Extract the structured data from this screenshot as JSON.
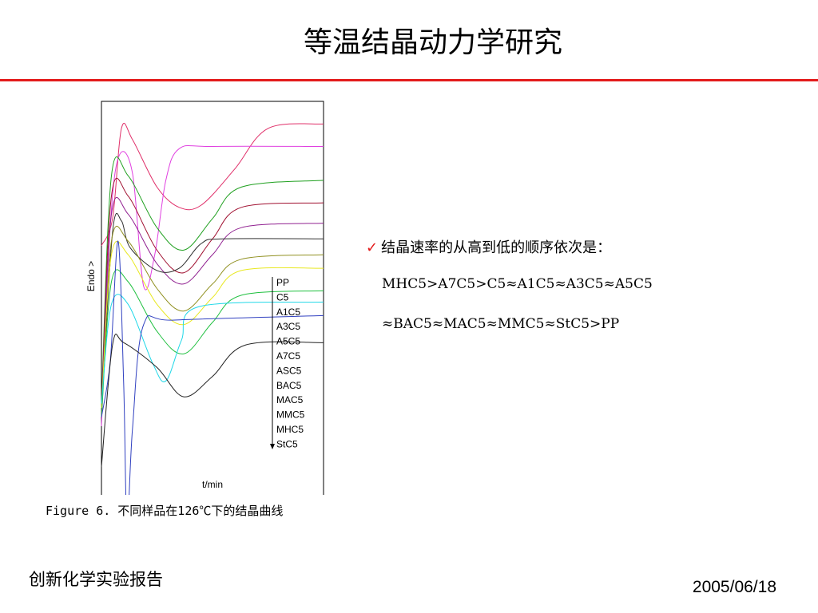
{
  "slide": {
    "title": "等温结晶动力学研究",
    "caption": "Figure 6. 不同样品在126℃下的结晶曲线",
    "conclusion": "结晶速率的从高到低的顺序依次是：",
    "order_line_1": "MHC5>A7C5>C5≈A1C5≈A3C5≈A5C5",
    "order_line_2": "≈BAC5≈MAC5≈MMC5≈StC5>PP",
    "footer_left": "创新化学实验报告",
    "footer_right": "2005/06/18",
    "check_icon": "✓",
    "accent_color": "#e31b1b"
  },
  "chart_data": {
    "type": "line",
    "xlabel": "t/min",
    "ylabel": "Endo >",
    "xlim": [
      0,
      10
    ],
    "x_ticks": [
      "0",
      "1",
      "2",
      "3",
      "4",
      "5",
      "6",
      "7",
      "8",
      "9",
      "10"
    ],
    "y_ticks_shown": false,
    "legend": [
      "PP",
      "C5",
      "A1C5",
      "A3C5",
      "A5C5",
      "A7C5",
      "ASC5",
      "BAC5",
      "MAC5",
      "MMC5",
      "MHC5",
      "StC5"
    ],
    "legend_position": "bottom-right",
    "series": [
      {
        "color": "#e0306a",
        "points": [
          [
            0,
            9.6
          ],
          [
            0.5,
            10.8
          ],
          [
            0.9,
            14.8
          ],
          [
            1.4,
            14.3
          ],
          [
            2.5,
            12.2
          ],
          [
            3.5,
            11.3
          ],
          [
            4.5,
            11.4
          ],
          [
            6,
            13.0
          ],
          [
            7.5,
            14.8
          ],
          [
            10,
            15.0
          ]
        ]
      },
      {
        "color": "#e040e0",
        "points": [
          [
            0,
            1.6
          ],
          [
            0.4,
            10.5
          ],
          [
            0.8,
            13.6
          ],
          [
            1.4,
            12.8
          ],
          [
            1.9,
            7.8
          ],
          [
            2.4,
            9.2
          ],
          [
            2.9,
            12.5
          ],
          [
            3.5,
            13.9
          ],
          [
            5,
            14.0
          ],
          [
            10,
            14.0
          ]
        ]
      },
      {
        "color": "#20a020",
        "points": [
          [
            0,
            2.6
          ],
          [
            0.45,
            12.7
          ],
          [
            1.2,
            12.7
          ],
          [
            2.5,
            10.4
          ],
          [
            3.7,
            9.4
          ],
          [
            5,
            10.8
          ],
          [
            6.3,
            12.2
          ],
          [
            10,
            12.5
          ]
        ]
      },
      {
        "color": "#a01030",
        "points": [
          [
            0,
            2.4
          ],
          [
            0.45,
            11.8
          ],
          [
            1.2,
            11.8
          ],
          [
            2.5,
            9.4
          ],
          [
            3.7,
            8.4
          ],
          [
            5,
            9.9
          ],
          [
            6.3,
            11.3
          ],
          [
            10,
            11.5
          ]
        ]
      },
      {
        "color": "#902090",
        "points": [
          [
            0,
            2.2
          ],
          [
            0.45,
            11.0
          ],
          [
            1.2,
            11.0
          ],
          [
            2.5,
            8.8
          ],
          [
            3.7,
            7.9
          ],
          [
            5,
            9.2
          ],
          [
            6.3,
            10.4
          ],
          [
            10,
            10.6
          ]
        ]
      },
      {
        "color": "#303030",
        "points": [
          [
            0,
            2.2
          ],
          [
            0.5,
            10.2
          ],
          [
            0.9,
            10.7
          ],
          [
            1.3,
            9.5
          ],
          [
            2.5,
            8.5
          ],
          [
            3.5,
            8.6
          ],
          [
            4.5,
            9.7
          ],
          [
            5.5,
            9.9
          ],
          [
            10,
            9.9
          ]
        ]
      },
      {
        "color": "#909020",
        "points": [
          [
            0,
            2.0
          ],
          [
            0.45,
            9.8
          ],
          [
            1.2,
            9.8
          ],
          [
            2.5,
            7.7
          ],
          [
            3.7,
            6.7
          ],
          [
            5,
            7.9
          ],
          [
            6.3,
            9.0
          ],
          [
            10,
            9.2
          ]
        ]
      },
      {
        "color": "#e8e820",
        "points": [
          [
            0,
            2.4
          ],
          [
            0.45,
            9.2
          ],
          [
            1.2,
            9.2
          ],
          [
            2.5,
            7.0
          ],
          [
            3.7,
            6.1
          ],
          [
            5,
            7.3
          ],
          [
            6.3,
            8.5
          ],
          [
            10,
            8.6
          ]
        ]
      },
      {
        "color": "#20c040",
        "points": [
          [
            0,
            2.0
          ],
          [
            0.45,
            8.0
          ],
          [
            1.2,
            8.0
          ],
          [
            2.5,
            5.8
          ],
          [
            3.7,
            4.8
          ],
          [
            5,
            6.2
          ],
          [
            6.3,
            7.4
          ],
          [
            10,
            7.6
          ]
        ]
      },
      {
        "color": "#20d8e8",
        "points": [
          [
            0,
            2.6
          ],
          [
            0.45,
            7.0
          ],
          [
            1.2,
            7.0
          ],
          [
            2.3,
            4.4
          ],
          [
            2.9,
            3.6
          ],
          [
            3.6,
            5.4
          ],
          [
            4.4,
            6.9
          ],
          [
            10,
            7.1
          ]
        ]
      },
      {
        "color": "#3040c0",
        "points": [
          [
            0,
            2.0
          ],
          [
            0.4,
            4.5
          ],
          [
            0.75,
            9.8
          ],
          [
            1.0,
            3.5
          ],
          [
            1.15,
            -2.8
          ],
          [
            1.4,
            1.5
          ],
          [
            1.9,
            6.1
          ],
          [
            3.3,
            6.3
          ],
          [
            10,
            6.5
          ]
        ]
      },
      {
        "color": "#222222",
        "points": [
          [
            0,
            -0.2
          ],
          [
            0.5,
            5.2
          ],
          [
            1.0,
            5.3
          ],
          [
            2.5,
            4.2
          ],
          [
            3.7,
            2.9
          ],
          [
            5,
            3.8
          ],
          [
            6.5,
            5.2
          ],
          [
            10,
            5.3
          ]
        ]
      }
    ]
  }
}
